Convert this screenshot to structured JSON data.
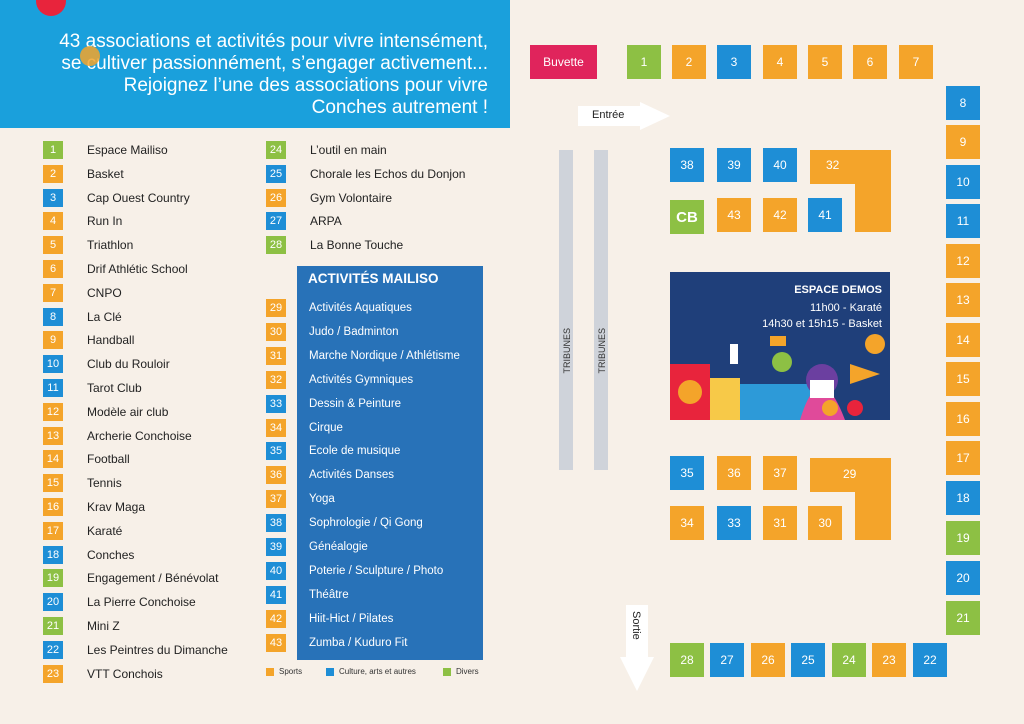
{
  "colors": {
    "sports": "#f4a42a",
    "culture": "#1e8ed6",
    "divers": "#8dc044",
    "buvette": "#e0245c",
    "header": "#1aa0dc",
    "mailiso": "#2872b8"
  },
  "header": {
    "line1": "43 associations et activités pour vivre intensément,",
    "line2": "se cultiver passionnément, s’engager activement...",
    "line3": "Rejoignez l’une des associations pour vivre",
    "line4": "Conches autrement !"
  },
  "associations": [
    {
      "num": "1",
      "name": "Espace Mailiso",
      "cat": "divers"
    },
    {
      "num": "2",
      "name": "Basket",
      "cat": "sports"
    },
    {
      "num": "3",
      "name": "Cap Ouest Country",
      "cat": "culture"
    },
    {
      "num": "4",
      "name": "Run In",
      "cat": "sports"
    },
    {
      "num": "5",
      "name": "Triathlon",
      "cat": "sports"
    },
    {
      "num": "6",
      "name": "Drif Athlétic School",
      "cat": "sports"
    },
    {
      "num": "7",
      "name": "CNPO",
      "cat": "sports"
    },
    {
      "num": "8",
      "name": "La Clé",
      "cat": "culture"
    },
    {
      "num": "9",
      "name": "Handball",
      "cat": "sports"
    },
    {
      "num": "10",
      "name": "Club du Rouloir",
      "cat": "culture"
    },
    {
      "num": "11",
      "name": "Tarot Club",
      "cat": "culture"
    },
    {
      "num": "12",
      "name": "Modèle air club",
      "cat": "sports"
    },
    {
      "num": "13",
      "name": "Archerie Conchoise",
      "cat": "sports"
    },
    {
      "num": "14",
      "name": "Football",
      "cat": "sports"
    },
    {
      "num": "15",
      "name": "Tennis",
      "cat": "sports"
    },
    {
      "num": "16",
      "name": "Krav Maga",
      "cat": "sports"
    },
    {
      "num": "17",
      "name": "Karaté",
      "cat": "sports"
    },
    {
      "num": "18",
      "name": "Conches",
      "cat": "culture"
    },
    {
      "num": "19",
      "name": "Engagement / Bénévolat",
      "cat": "divers"
    },
    {
      "num": "20",
      "name": "La Pierre Conchoise",
      "cat": "culture"
    },
    {
      "num": "21",
      "name": "Mini Z",
      "cat": "divers"
    },
    {
      "num": "22",
      "name": "Les Peintres du Dimanche",
      "cat": "culture"
    },
    {
      "num": "23",
      "name": "VTT Conchois",
      "cat": "sports"
    },
    {
      "num": "24",
      "name": "L’outil en main",
      "cat": "divers"
    },
    {
      "num": "25",
      "name": "Chorale les Echos du Donjon",
      "cat": "culture"
    },
    {
      "num": "26",
      "name": "Gym Volontaire",
      "cat": "sports"
    },
    {
      "num": "27",
      "name": "ARPA",
      "cat": "culture"
    },
    {
      "num": "28",
      "name": "La Bonne Touche",
      "cat": "divers"
    }
  ],
  "mailiso": {
    "title": "ACTIVITÉS MAILISO",
    "items": [
      {
        "num": "29",
        "name": "Activités Aquatiques",
        "cat": "sports"
      },
      {
        "num": "30",
        "name": "Judo / Badminton",
        "cat": "sports"
      },
      {
        "num": "31",
        "name": "Marche Nordique / Athlétisme",
        "cat": "sports"
      },
      {
        "num": "32",
        "name": "Activités Gymniques",
        "cat": "sports"
      },
      {
        "num": "33",
        "name": "Dessin & Peinture",
        "cat": "culture"
      },
      {
        "num": "34",
        "name": "Cirque",
        "cat": "sports"
      },
      {
        "num": "35",
        "name": "Ecole de musique",
        "cat": "culture"
      },
      {
        "num": "36",
        "name": "Activités Danses",
        "cat": "sports"
      },
      {
        "num": "37",
        "name": "Yoga",
        "cat": "sports"
      },
      {
        "num": "38",
        "name": "Sophrologie / Qi Gong",
        "cat": "culture"
      },
      {
        "num": "39",
        "name": "Généalogie",
        "cat": "culture"
      },
      {
        "num": "40",
        "name": "Poterie / Sculpture / Photo",
        "cat": "culture"
      },
      {
        "num": "41",
        "name": "Théâtre",
        "cat": "culture"
      },
      {
        "num": "42",
        "name": "Hiit-Hict / Pilates",
        "cat": "sports"
      },
      {
        "num": "43",
        "name": "Zumba / Kuduro Fit",
        "cat": "sports"
      }
    ]
  },
  "categories": {
    "sports": "Sports",
    "culture": "Culture, arts et autres",
    "divers": "Divers"
  },
  "map": {
    "buvette": "Buvette",
    "entree": "Entrée",
    "sortie": "Sortie",
    "tribunes": "TRIBUNES",
    "cb": "CB",
    "booth_32": "32",
    "booth_29": "29",
    "demo": {
      "title": "ESPACE DEMOS",
      "line1": "11h00 - Karaté",
      "line2": "14h30 et 15h15 - Basket"
    }
  }
}
